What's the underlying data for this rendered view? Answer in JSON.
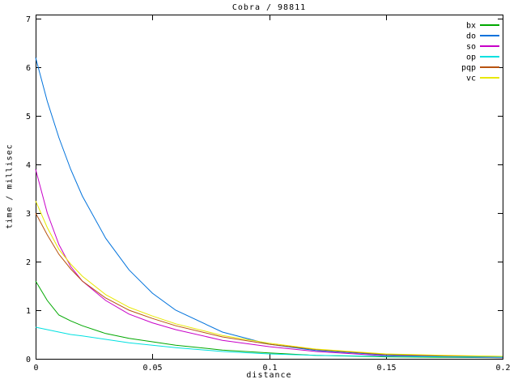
{
  "chart_data": {
    "type": "line",
    "title": "Cobra / 98811",
    "xlabel": "distance",
    "ylabel": "time / millisec",
    "xlim": [
      0,
      0.2
    ],
    "ylim": [
      0,
      7
    ],
    "grid": false,
    "legend_position": "top-right-inside",
    "axis_color": "#000000",
    "background_color": "#ffffff",
    "xticks": [
      {
        "v": 0,
        "label": "0"
      },
      {
        "v": 0.05,
        "label": "0.05"
      },
      {
        "v": 0.1,
        "label": "0.1"
      },
      {
        "v": 0.15,
        "label": "0.15"
      },
      {
        "v": 0.2,
        "label": "0.2"
      }
    ],
    "yticks": [
      {
        "v": 0,
        "label": "0"
      },
      {
        "v": 1,
        "label": "1"
      },
      {
        "v": 2,
        "label": "2"
      },
      {
        "v": 3,
        "label": "3"
      },
      {
        "v": 4,
        "label": "4"
      },
      {
        "v": 5,
        "label": "5"
      },
      {
        "v": 6,
        "label": "6"
      },
      {
        "v": 7,
        "label": "7"
      }
    ],
    "x": [
      0,
      0.005,
      0.01,
      0.015,
      0.02,
      0.03,
      0.04,
      0.05,
      0.06,
      0.08,
      0.1,
      0.12,
      0.15,
      0.175,
      0.2
    ],
    "series": [
      {
        "name": "bx",
        "color": "#00a800",
        "values": [
          1.6,
          1.2,
          0.9,
          0.78,
          0.68,
          0.52,
          0.42,
          0.35,
          0.28,
          0.18,
          0.12,
          0.07,
          0.04,
          0.03,
          0.02
        ]
      },
      {
        "name": "do",
        "color": "#0072dc",
        "values": [
          6.2,
          5.3,
          4.55,
          3.9,
          3.35,
          2.48,
          1.83,
          1.35,
          1.0,
          0.55,
          0.3,
          0.17,
          0.08,
          0.05,
          0.04
        ]
      },
      {
        "name": "so",
        "color": "#c800c8",
        "values": [
          3.9,
          3.0,
          2.35,
          1.9,
          1.6,
          1.2,
          0.92,
          0.74,
          0.6,
          0.38,
          0.25,
          0.15,
          0.06,
          0.04,
          0.02
        ]
      },
      {
        "name": "op",
        "color": "#00e0e0",
        "values": [
          0.65,
          0.6,
          0.55,
          0.5,
          0.47,
          0.4,
          0.33,
          0.28,
          0.23,
          0.15,
          0.1,
          0.07,
          0.05,
          0.04,
          0.03
        ]
      },
      {
        "name": "pqp",
        "color": "#b85310",
        "values": [
          3.0,
          2.55,
          2.15,
          1.85,
          1.6,
          1.25,
          1.0,
          0.83,
          0.68,
          0.45,
          0.3,
          0.19,
          0.09,
          0.06,
          0.05
        ]
      },
      {
        "name": "vc",
        "color": "#e8e800",
        "values": [
          3.25,
          2.7,
          2.25,
          1.95,
          1.7,
          1.32,
          1.06,
          0.88,
          0.72,
          0.48,
          0.32,
          0.2,
          0.1,
          0.07,
          0.05
        ]
      }
    ]
  }
}
